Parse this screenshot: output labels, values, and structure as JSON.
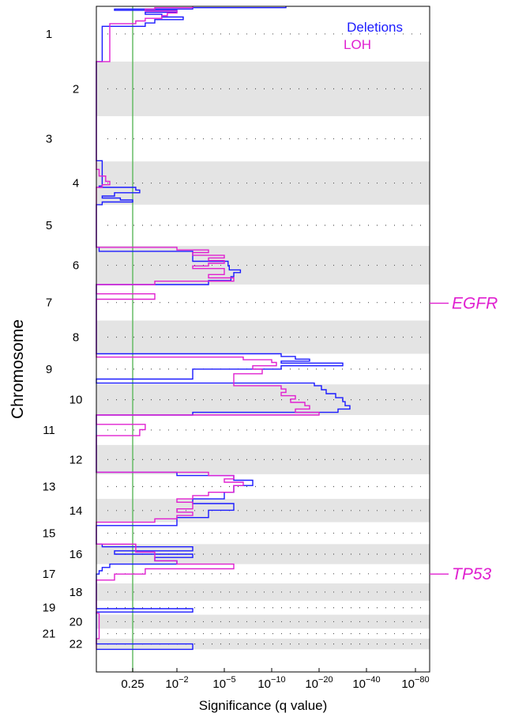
{
  "chart_data": {
    "type": "line",
    "orientation": "horizontal-genome",
    "ylabel": "Chromosome",
    "xlabel": "Significance (q value)",
    "x_ticks": [
      {
        "value": "0.25",
        "base": "",
        "exp": ""
      },
      {
        "value": "1e-2",
        "base": "10",
        "exp": "−2"
      },
      {
        "value": "1e-5",
        "base": "10",
        "exp": "−5"
      },
      {
        "value": "1e-10",
        "base": "10",
        "exp": "−10"
      },
      {
        "value": "1e-20",
        "base": "10",
        "exp": "−20"
      },
      {
        "value": "1e-40",
        "base": "10",
        "exp": "−40"
      },
      {
        "value": "1e-80",
        "base": "10",
        "exp": "−80"
      }
    ],
    "threshold_q": 0.25,
    "threshold_color": "#5cb85c",
    "legend": [
      {
        "name": "Deletions",
        "color": "#1a1aff"
      },
      {
        "name": "LOH",
        "color": "#e020d0"
      }
    ],
    "legend_position": "top-right",
    "chromosomes": [
      {
        "label": "1",
        "start": 0.0,
        "end": 0.083,
        "shaded": false
      },
      {
        "label": "2",
        "start": 0.083,
        "end": 0.165,
        "shaded": true
      },
      {
        "label": "3",
        "start": 0.165,
        "end": 0.233,
        "shaded": false
      },
      {
        "label": "4",
        "start": 0.233,
        "end": 0.298,
        "shaded": true
      },
      {
        "label": "5",
        "start": 0.298,
        "end": 0.36,
        "shaded": false
      },
      {
        "label": "6",
        "start": 0.36,
        "end": 0.418,
        "shaded": true
      },
      {
        "label": "7",
        "start": 0.418,
        "end": 0.472,
        "shaded": false
      },
      {
        "label": "8",
        "start": 0.472,
        "end": 0.522,
        "shaded": true
      },
      {
        "label": "9",
        "start": 0.522,
        "end": 0.568,
        "shaded": false
      },
      {
        "label": "10",
        "start": 0.568,
        "end": 0.614,
        "shaded": true
      },
      {
        "label": "11",
        "start": 0.614,
        "end": 0.659,
        "shaded": false
      },
      {
        "label": "12",
        "start": 0.659,
        "end": 0.703,
        "shaded": true
      },
      {
        "label": "13",
        "start": 0.703,
        "end": 0.74,
        "shaded": false
      },
      {
        "label": "14",
        "start": 0.74,
        "end": 0.775,
        "shaded": true
      },
      {
        "label": "15",
        "start": 0.775,
        "end": 0.808,
        "shaded": false
      },
      {
        "label": "16",
        "start": 0.808,
        "end": 0.838,
        "shaded": true
      },
      {
        "label": "17",
        "start": 0.838,
        "end": 0.867,
        "shaded": false
      },
      {
        "label": "18",
        "start": 0.867,
        "end": 0.893,
        "shaded": true
      },
      {
        "label": "19",
        "start": 0.893,
        "end": 0.914,
        "shaded": false
      },
      {
        "label": "20",
        "start": 0.914,
        "end": 0.935,
        "shaded": true
      },
      {
        "label": "21",
        "start": 0.935,
        "end": 0.95,
        "shaded": false
      },
      {
        "label": "22",
        "start": 0.95,
        "end": 0.966,
        "shaded": true
      }
    ],
    "annotations": [
      {
        "text": "EGFR",
        "at": 0.446,
        "color": "#e020d0"
      },
      {
        "text": "TP53",
        "at": 0.853,
        "color": "#e020d0"
      }
    ],
    "series": [
      {
        "name": "Deletions",
        "color": "#1a1aff",
        "pos": [
          0.0,
          0.002,
          0.004,
          0.006,
          0.009,
          0.012,
          0.016,
          0.02,
          0.025,
          0.03,
          0.083,
          0.23,
          0.232,
          0.27,
          0.272,
          0.276,
          0.28,
          0.285,
          0.288,
          0.291,
          0.294,
          0.298,
          0.362,
          0.368,
          0.375,
          0.383,
          0.39,
          0.396,
          0.4,
          0.406,
          0.412,
          0.418,
          0.44,
          0.48,
          0.518,
          0.522,
          0.526,
          0.53,
          0.533,
          0.536,
          0.54,
          0.545,
          0.56,
          0.566,
          0.57,
          0.576,
          0.582,
          0.588,
          0.594,
          0.6,
          0.605,
          0.61,
          0.614,
          0.625,
          0.64,
          0.66,
          0.69,
          0.7,
          0.705,
          0.712,
          0.72,
          0.73,
          0.74,
          0.747,
          0.752,
          0.757,
          0.762,
          0.768,
          0.772,
          0.776,
          0.78,
          0.785,
          0.79,
          0.8,
          0.808,
          0.812,
          0.818,
          0.823,
          0.828,
          0.833,
          0.838,
          0.843,
          0.848,
          0.853,
          0.858,
          0.866,
          0.895,
          0.905,
          0.91,
          0.94,
          0.95,
          0.958,
          0.966
        ],
        "q": [
          1e-13,
          0.001,
          0.5,
          0.01,
          0.1,
          0.03,
          0.004,
          0.05,
          0.1,
          0.8,
          1.0,
          1.0,
          0.8,
          0.9,
          0.2,
          0.15,
          0.5,
          0.8,
          0.4,
          0.25,
          0.8,
          1.0,
          0.9,
          0.001,
          0.001,
          4e-06,
          3e-06,
          2e-07,
          1e-06,
          2e-06,
          0.0001,
          1.0,
          1.0,
          1.0,
          1.0,
          1e-12,
          1e-15,
          1e-18,
          1e-12,
          1e-30,
          1e-12,
          0.001,
          1.0,
          1e-19,
          1e-21,
          1e-23,
          1e-27,
          1e-30,
          1e-31,
          1e-33,
          1e-28,
          0.001,
          1.0,
          1.0,
          1.0,
          1.0,
          1.0,
          0.01,
          1e-06,
          1e-08,
          1e-06,
          1e-05,
          0.001,
          1e-06,
          1e-06,
          0.0001,
          0.0001,
          0.01,
          0.01,
          0.01,
          1.0,
          1.0,
          1.0,
          1.0,
          0.8,
          0.001,
          0.5,
          0.001,
          0.05,
          0.01,
          0.6,
          0.8,
          0.9,
          1.0,
          1.0,
          1.0,
          1.0,
          0.001,
          1.0,
          1.0,
          1.0,
          0.001,
          1.0
        ]
      },
      {
        "name": "LOH",
        "color": "#e020d0",
        "pos": [
          0.0,
          0.002,
          0.004,
          0.007,
          0.01,
          0.014,
          0.018,
          0.022,
          0.026,
          0.083,
          0.245,
          0.255,
          0.263,
          0.268,
          0.272,
          0.298,
          0.362,
          0.366,
          0.37,
          0.374,
          0.378,
          0.382,
          0.386,
          0.39,
          0.394,
          0.398,
          0.403,
          0.408,
          0.413,
          0.418,
          0.432,
          0.44,
          0.47,
          0.522,
          0.527,
          0.531,
          0.535,
          0.54,
          0.545,
          0.552,
          0.57,
          0.575,
          0.58,
          0.585,
          0.59,
          0.595,
          0.6,
          0.605,
          0.61,
          0.614,
          0.628,
          0.636,
          0.645,
          0.7,
          0.705,
          0.71,
          0.715,
          0.72,
          0.725,
          0.73,
          0.735,
          0.74,
          0.745,
          0.75,
          0.755,
          0.76,
          0.765,
          0.77,
          0.775,
          0.808,
          0.82,
          0.833,
          0.838,
          0.845,
          0.853,
          0.862,
          0.894,
          0.912,
          0.95,
          0.966
        ],
        "q": [
          0.001,
          0.05,
          0.1,
          0.01,
          0.02,
          0.03,
          0.1,
          0.2,
          0.6,
          1.0,
          0.9,
          0.7,
          0.6,
          0.8,
          1.0,
          1.0,
          0.01,
          0.0001,
          0.001,
          1e-05,
          0.0001,
          1e-05,
          0.0001,
          0.001,
          1e-05,
          1e-05,
          0.0001,
          1e-06,
          0.05,
          1.0,
          0.05,
          1.0,
          1.0,
          1.0,
          1e-07,
          1e-10,
          1e-11,
          1e-08,
          1e-09,
          1e-06,
          1e-12,
          1e-13,
          1e-12,
          1e-15,
          1e-14,
          1e-17,
          1e-18,
          1e-15,
          1e-20,
          1.0,
          0.1,
          0.15,
          1.0,
          0.0001,
          1e-06,
          1e-05,
          1e-07,
          1e-06,
          1e-06,
          0.0001,
          0.001,
          0.01,
          0.001,
          0.001,
          0.01,
          0.001,
          0.01,
          0.05,
          1.0,
          0.2,
          0.05,
          0.01,
          1e-06,
          0.1,
          0.5,
          1.0,
          1.0,
          0.9,
          1.0,
          1.0
        ]
      }
    ]
  }
}
